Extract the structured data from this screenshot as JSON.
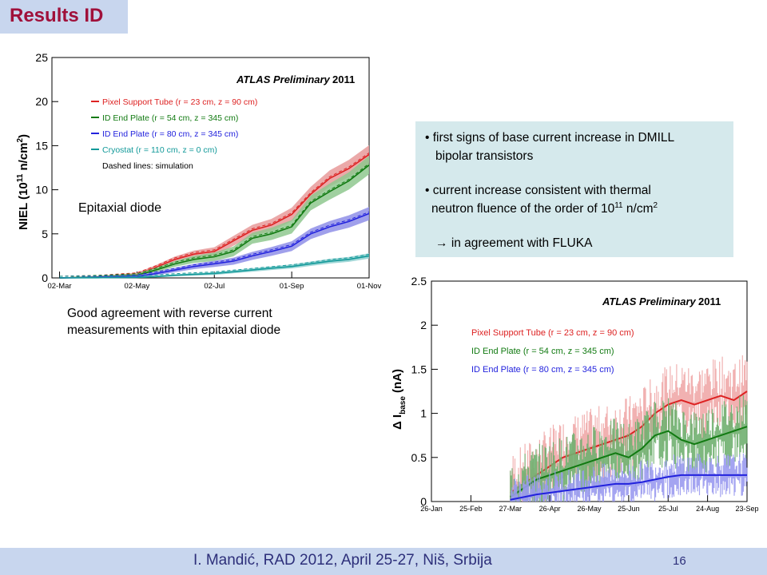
{
  "slide": {
    "title": "Results ID",
    "caption_line1": "Good agreement with reverse current",
    "caption_line2": "measurements with thin epitaxial diode",
    "footer_citation": "I. Mandić, RAD 2012, April 25-27, Niš, Srbija",
    "page_number": "16"
  },
  "bullets": {
    "b1_line1": "first signs of base current increase in DMILL",
    "b1_line2": "bipolar transistors",
    "b2_line1": "current increase consistent with thermal",
    "b2_line2_pre": "neutron fluence of the order of 10",
    "b2_line2_sup": "11",
    "b2_line2_mid": " n/cm",
    "b2_line2_sup2": "2",
    "b3_arrow": "→",
    "b3_text": "in agreement with FLUKA"
  },
  "colors": {
    "title_bg": "#c8d6ee",
    "title_text": "#a0103a",
    "bullet_bg": "#d5e9ec",
    "footer_text": "#2d2f7a",
    "red": "#dd2222",
    "green": "#117a11",
    "blue": "#2222dd",
    "cyan": "#119999"
  },
  "chart_data": [
    {
      "type": "line",
      "ylabel": "NIEL (10^11 n/cm^2)",
      "ylabel_parts": {
        "pre": "NIEL (10",
        "sup1": "11",
        "mid": " n/cm",
        "sup2": "2",
        "post": ")"
      },
      "annotation": "ATLAS Preliminary",
      "year": "2011",
      "inner_label": "Epitaxial diode",
      "note": "Dashed lines: simulation",
      "ylim": [
        0,
        25
      ],
      "yticks": [
        0,
        5,
        10,
        15,
        20,
        25
      ],
      "xticks": [
        "02-Mar",
        "02-May",
        "02-Jul",
        "01-Sep",
        "01-Nov"
      ],
      "x": [
        0,
        30,
        61,
        76,
        91,
        106,
        122,
        137,
        152,
        167,
        183,
        198,
        213,
        228,
        244
      ],
      "series": [
        {
          "name": "Pixel Support Tube (r = 23 cm, z = 90 cm)",
          "color": "#dd2222",
          "values": [
            0,
            0.1,
            0.4,
            1.2,
            2.1,
            2.7,
            3.0,
            4.2,
            5.4,
            6.0,
            7.2,
            9.5,
            11.3,
            12.4,
            14.0
          ],
          "band": 1.0
        },
        {
          "name": "ID End Plate (r = 54 cm, z = 345 cm)",
          "color": "#117a11",
          "values": [
            0,
            0.1,
            0.3,
            0.9,
            1.6,
            2.1,
            2.4,
            3.0,
            4.5,
            5.0,
            5.8,
            8.5,
            9.8,
            11.0,
            12.8
          ],
          "band": 1.0
        },
        {
          "name": "ID End Plate (r = 80 cm, z = 345 cm)",
          "color": "#2222dd",
          "values": [
            0,
            0.05,
            0.15,
            0.5,
            0.9,
            1.3,
            1.6,
            1.9,
            2.5,
            3.0,
            3.6,
            5.0,
            5.8,
            6.4,
            7.3
          ],
          "band": 0.7
        },
        {
          "name": "Cryostat (r = 110 cm, z = 0 cm)",
          "color": "#119999",
          "values": [
            0,
            0.02,
            0.05,
            0.15,
            0.3,
            0.4,
            0.5,
            0.7,
            0.9,
            1.1,
            1.3,
            1.6,
            1.9,
            2.1,
            2.5
          ],
          "band": 0.25
        }
      ]
    },
    {
      "type": "line",
      "ylabel": "Δ I_base (nA)",
      "ylabel_parts": {
        "pre": "Δ I",
        "sub": "base",
        "post": " (nA)"
      },
      "annotation": "ATLAS Preliminary",
      "year": "2011",
      "ylim": [
        0,
        2.5
      ],
      "yticks": [
        0,
        0.5,
        1,
        1.5,
        2,
        2.5
      ],
      "ytick_labels": [
        "0",
        "0.5",
        "1",
        "1.5",
        "2",
        "2.5"
      ],
      "xticks": [
        "26-Jan",
        "25-Feb",
        "27-Mar",
        "26-Apr",
        "26-May",
        "25-Jun",
        "25-Jul",
        "24-Aug",
        "23-Sep"
      ],
      "x": [
        60,
        70,
        80,
        90,
        100,
        110,
        120,
        130,
        140,
        150,
        160,
        170,
        180,
        190,
        200,
        210,
        220,
        230,
        240
      ],
      "series": [
        {
          "name": "Pixel Support Tube (r = 23 cm, z = 90 cm)",
          "color": "#dd2222",
          "values": [
            0.1,
            0.2,
            0.3,
            0.4,
            0.5,
            0.55,
            0.6,
            0.65,
            0.7,
            0.75,
            0.85,
            1.0,
            1.1,
            1.15,
            1.1,
            1.15,
            1.2,
            1.15,
            1.25
          ],
          "spread": 0.45
        },
        {
          "name": "ID End Plate (r = 54 cm, z = 345 cm)",
          "color": "#117a11",
          "values": [
            0.05,
            0.15,
            0.25,
            0.3,
            0.35,
            0.4,
            0.45,
            0.5,
            0.55,
            0.5,
            0.6,
            0.75,
            0.8,
            0.7,
            0.65,
            0.7,
            0.75,
            0.8,
            0.85
          ],
          "spread": 0.4
        },
        {
          "name": "ID End Plate (r = 80 cm, z = 345 cm)",
          "color": "#2222dd",
          "values": [
            0.02,
            0.05,
            0.08,
            0.1,
            0.12,
            0.14,
            0.16,
            0.18,
            0.2,
            0.2,
            0.22,
            0.25,
            0.28,
            0.3,
            0.3,
            0.3,
            0.3,
            0.3,
            0.3
          ],
          "spread": 0.25
        }
      ]
    }
  ]
}
